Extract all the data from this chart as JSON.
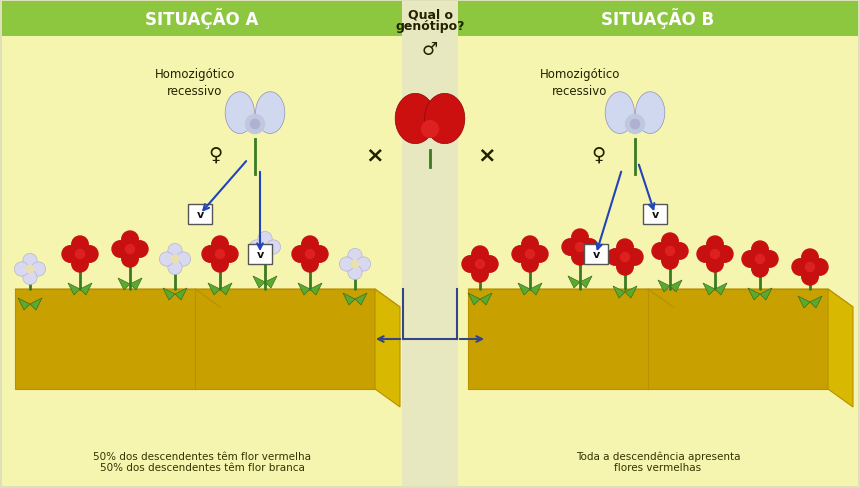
{
  "header_A": "SITUAÇÃO A",
  "header_B": "SITUAÇÃO B",
  "center_title_line1": "Qual o",
  "center_title_line2": "genótipo?",
  "label_homozigoto_left": "Homozigótico\nrecessivo",
  "label_homozigoto_right": "Homozigótico\nrecessivo",
  "female_symbol": "♀",
  "male_symbol": "♂",
  "cross_symbol": "×",
  "footnote_A_line1": "50% dos descendentes têm flor vermelha",
  "footnote_A_line2": "50% dos descendentes têm flor branca",
  "footnote_B_line1": "Toda a descendência apresenta",
  "footnote_B_line2": "flores vermelhas",
  "header_green": "#8dc63f",
  "panel_bg": "#f5f5b0",
  "center_bg": "#e8e8c0",
  "outer_bg": "#e0e0b8",
  "yellow_top": "#f0d820",
  "yellow_front": "#c8a000",
  "yellow_side": "#d8b800",
  "arrow_color": "#2244bb",
  "text_color": "#222200",
  "bracket_color": "#334488"
}
